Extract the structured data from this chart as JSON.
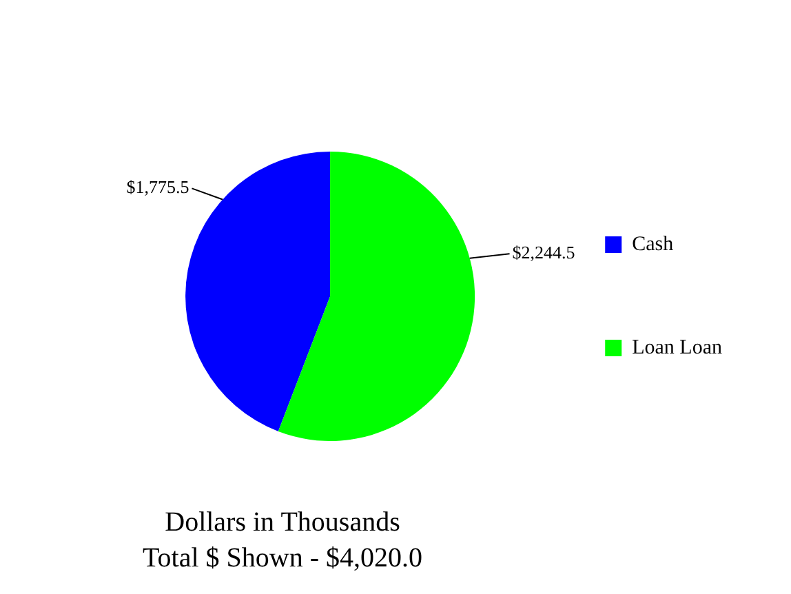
{
  "chart_data": {
    "type": "pie",
    "title": "Dollars in Thousands",
    "subtitle": "Total $ Shown - $4,020.0",
    "categories": [
      "Cash",
      "Loan Loan"
    ],
    "values": [
      1775.5,
      2244.5
    ],
    "colors": [
      "#0000ff",
      "#00ff00"
    ],
    "value_labels": [
      "$1,775.5",
      "$2,244.5"
    ],
    "legend": "right"
  }
}
